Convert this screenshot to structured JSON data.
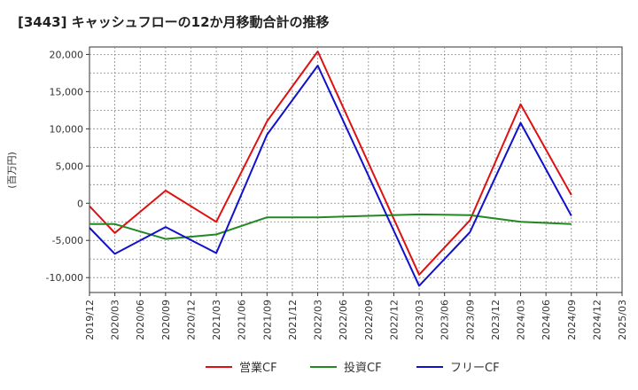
{
  "chart_data": {
    "type": "line",
    "title": "[3443]  キャッシュフローの12か月移動合計の推移",
    "ylabel": "(百万円)",
    "xlabel": "",
    "ylim": [
      -12000,
      21000
    ],
    "yticks": [
      -10000,
      -5000,
      0,
      5000,
      10000,
      15000,
      20000
    ],
    "ytick_labels": [
      "-10,000",
      "-5,000",
      "0",
      "5,000",
      "10,000",
      "15,000",
      "20,000"
    ],
    "categories": [
      "2019/12",
      "2020/03",
      "2020/06",
      "2020/09",
      "2020/12",
      "2021/03",
      "2021/06",
      "2021/09",
      "2021/12",
      "2022/03",
      "2022/06",
      "2022/09",
      "2022/12",
      "2023/03",
      "2023/06",
      "2023/09",
      "2023/12",
      "2024/03",
      "2024/06",
      "2024/09",
      "2024/12",
      "2025/03"
    ],
    "series": [
      {
        "name": "営業CF",
        "color": "#dd1111",
        "values": [
          -400,
          -4000,
          null,
          1700,
          null,
          -2500,
          null,
          11000,
          null,
          20400,
          null,
          null,
          null,
          -9600,
          null,
          -2300,
          null,
          13300,
          null,
          1100,
          null,
          null
        ]
      },
      {
        "name": "投資CF",
        "color": "#228822",
        "values": [
          -2800,
          -2800,
          null,
          -4800,
          null,
          -4200,
          null,
          -1900,
          null,
          -1900,
          null,
          null,
          null,
          -1500,
          null,
          -1600,
          null,
          -2500,
          null,
          -2800,
          null,
          null
        ]
      },
      {
        "name": "フリーCF",
        "color": "#1111cc",
        "values": [
          -3300,
          -6800,
          null,
          -3200,
          null,
          -6700,
          null,
          9200,
          null,
          18500,
          null,
          null,
          null,
          -11100,
          null,
          -3900,
          null,
          10800,
          null,
          -1700,
          null,
          null
        ]
      }
    ]
  }
}
